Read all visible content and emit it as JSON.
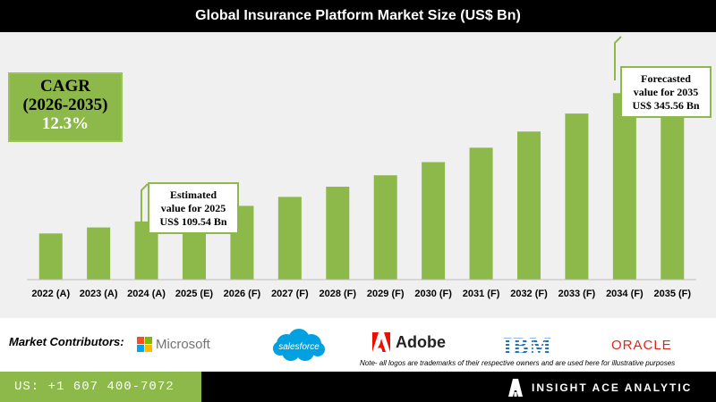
{
  "title": "Global Insurance Platform Market Size (US$ Bn)",
  "cagr": {
    "line1": "CAGR",
    "line2": "(2026-2035)",
    "value": "12.3%"
  },
  "callouts": {
    "estimated": {
      "line1": "Estimated",
      "line2": "value for 2025",
      "line3": "US$ 109.54 Bn"
    },
    "forecasted": {
      "line1": "Forecasted",
      "line2": "value for 2035",
      "line3": "US$ 345.56 Bn"
    }
  },
  "chart_data": {
    "type": "bar",
    "title": "Global Insurance Platform Market Size (US$ Bn)",
    "categories": [
      "2022 (A)",
      "2023 (A)",
      "2024 (A)",
      "2025 (E)",
      "2026 (F)",
      "2027 (F)",
      "2028 (F)",
      "2029 (F)",
      "2030 (F)",
      "2031 (F)",
      "2032 (F)",
      "2033 (F)",
      "2034 (F)",
      "2035 (F)"
    ],
    "values": [
      77,
      87,
      97,
      109.54,
      123,
      138,
      155,
      174,
      196,
      220,
      247,
      277,
      311,
      345.56
    ],
    "ylim": [
      0,
      380
    ],
    "grid": false,
    "bar_color": "#8db84a"
  },
  "contributors": {
    "label": "Market Contributors:",
    "microsoft": "Microsoft",
    "salesforce": "salesforce",
    "adobe": "Adobe",
    "ibm": "IBM",
    "oracle": "ORACLE",
    "note": "Note- all logos are trademarks of their respective owners and are used here for illustrative purposes"
  },
  "footer": {
    "phone": "US: +1 607 400-7072",
    "brand": "INSIGHT ACE ANALYTIC"
  },
  "colors": {
    "accent_green": "#8db84a",
    "header_bg": "#000000",
    "panel_bg": "#f0f0f0"
  }
}
